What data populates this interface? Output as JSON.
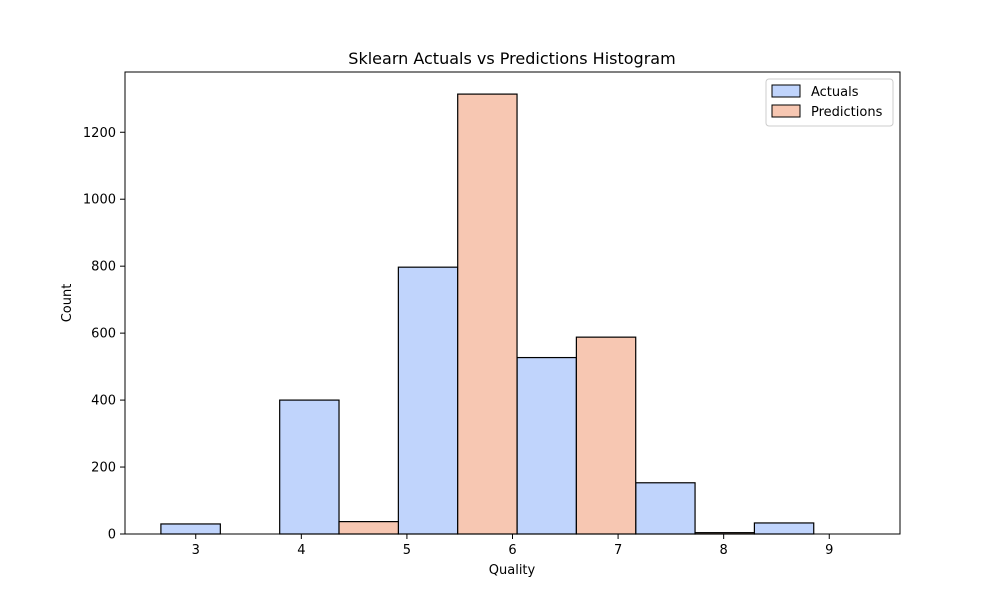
{
  "chart_data": {
    "type": "bar",
    "title": "Sklearn Actuals vs Predictions Histogram",
    "xlabel": "Quality",
    "ylabel": "Count",
    "xlim": [
      2.33,
      9.67
    ],
    "ylim": [
      0,
      1380
    ],
    "x_ticks": [
      3,
      4,
      5,
      6,
      7,
      8,
      9
    ],
    "y_ticks": [
      0,
      200,
      400,
      600,
      800,
      1000,
      1200
    ],
    "legend_position": "top-right",
    "series": [
      {
        "name": "Actuals",
        "color": "#c0d4fc",
        "bins": [
          {
            "x0": 2.67,
            "x1": 3.233,
            "value": 30
          },
          {
            "x0": 3.795,
            "x1": 4.357,
            "value": 400
          },
          {
            "x0": 4.919,
            "x1": 5.481,
            "value": 797
          },
          {
            "x0": 6.043,
            "x1": 6.605,
            "value": 527
          },
          {
            "x0": 7.167,
            "x1": 7.729,
            "value": 153
          },
          {
            "x0": 8.291,
            "x1": 8.853,
            "value": 33
          }
        ]
      },
      {
        "name": "Predictions",
        "color": "#f7c7b2",
        "bins": [
          {
            "x0": 3.233,
            "x1": 3.795,
            "value": 0
          },
          {
            "x0": 4.357,
            "x1": 4.919,
            "value": 37
          },
          {
            "x0": 5.481,
            "x1": 6.043,
            "value": 1314
          },
          {
            "x0": 6.605,
            "x1": 7.167,
            "value": 588
          },
          {
            "x0": 7.729,
            "x1": 8.291,
            "value": 4
          },
          {
            "x0": 8.853,
            "x1": 9.415,
            "value": 0
          }
        ]
      }
    ]
  }
}
